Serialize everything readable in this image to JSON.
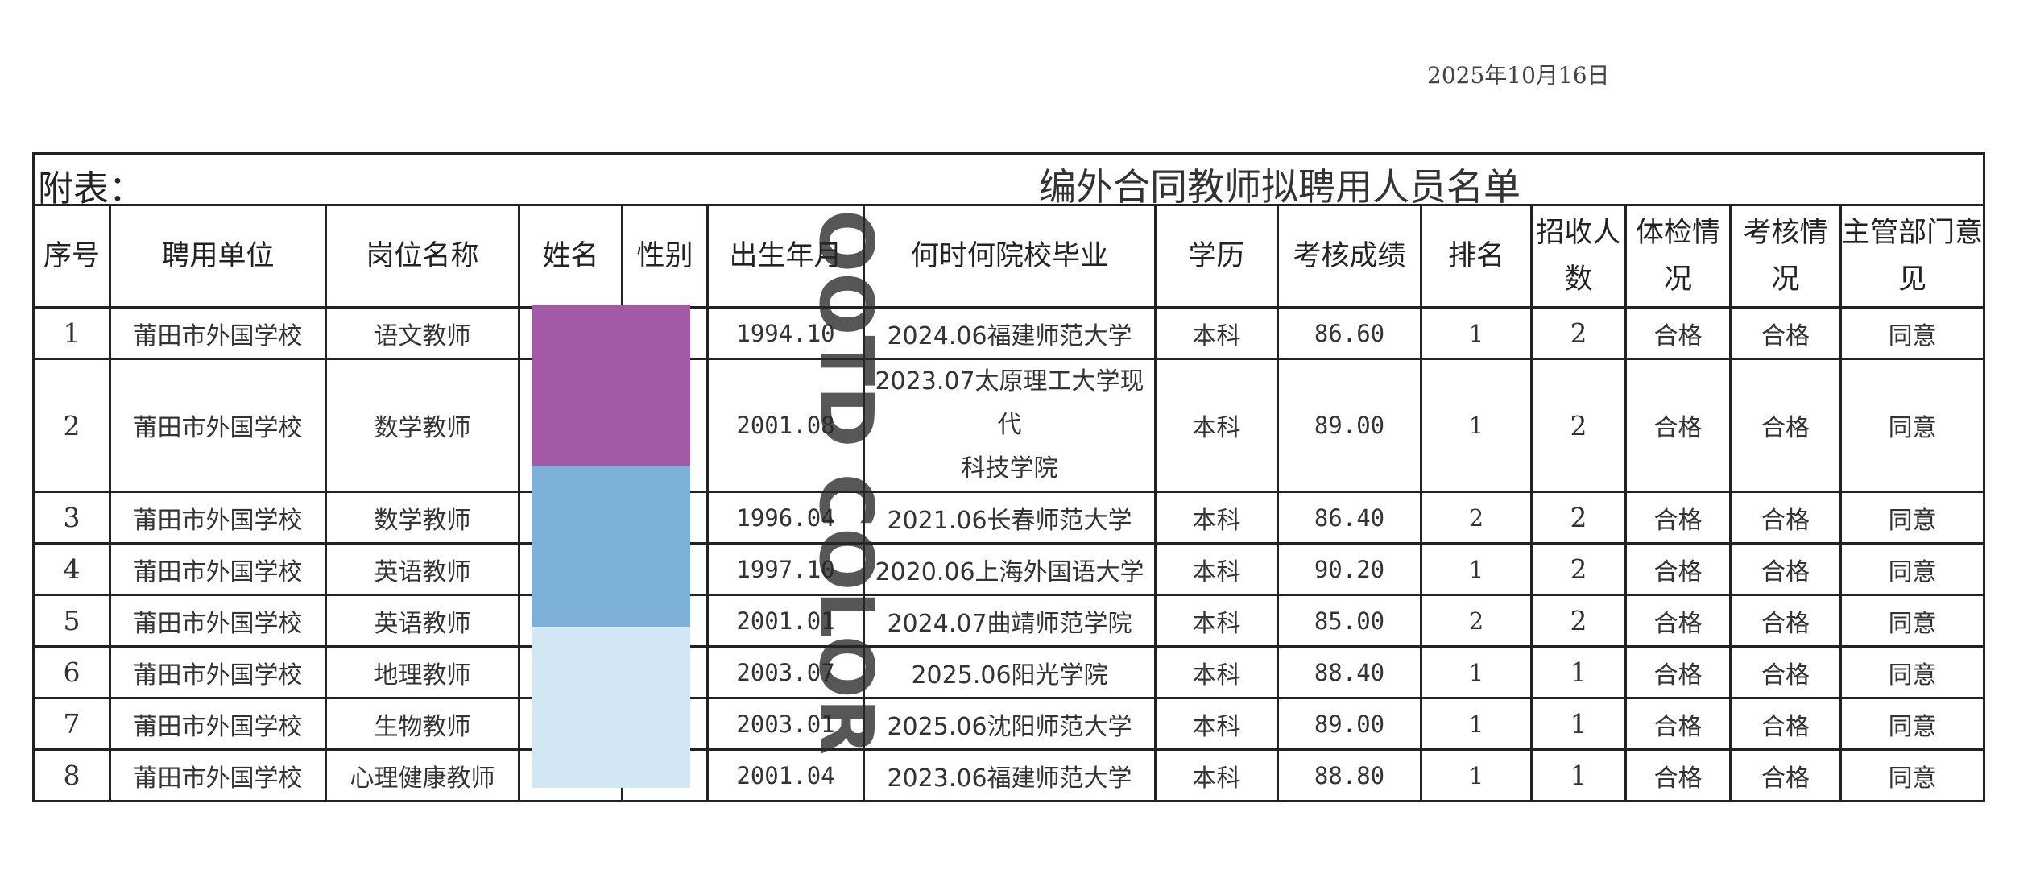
{
  "date": "2025年10月16日",
  "table": {
    "prefix": "附表：",
    "title": "编外合同教师拟聘用人员名单",
    "headers": [
      "序号",
      "聘用单位",
      "岗位名称",
      "姓名",
      "性别",
      "出生年月",
      "何时何院校毕业",
      "学历",
      "考核成绩",
      "排名",
      "招收人数",
      "体检情况",
      "考核情况",
      "主管部门意见"
    ],
    "rows": [
      {
        "no": "1",
        "unit": "莆田市外国学校",
        "position": "语文教师",
        "name": "",
        "gender": "",
        "birth": "1994.10",
        "school": "2024.06福建师范大学",
        "school2": "",
        "edu": "本科",
        "score": "86.60",
        "rank": "1",
        "quota": "2",
        "health": "合格",
        "assess": "合格",
        "opinion": "同意"
      },
      {
        "no": "2",
        "unit": "莆田市外国学校",
        "position": "数学教师",
        "name": "",
        "gender": "",
        "birth": "2001.08",
        "school": "2023.07太原理工大学现代",
        "school2": "科技学院",
        "edu": "本科",
        "score": "89.00",
        "rank": "1",
        "quota": "2",
        "health": "合格",
        "assess": "合格",
        "opinion": "同意"
      },
      {
        "no": "3",
        "unit": "莆田市外国学校",
        "position": "数学教师",
        "name": "",
        "gender": "",
        "birth": "1996.04",
        "school": "2021.06长春师范大学",
        "school2": "",
        "edu": "本科",
        "score": "86.40",
        "rank": "2",
        "quota": "2",
        "health": "合格",
        "assess": "合格",
        "opinion": "同意"
      },
      {
        "no": "4",
        "unit": "莆田市外国学校",
        "position": "英语教师",
        "name": "",
        "gender": "",
        "birth": "1997.10",
        "school": "2020.06上海外国语大学",
        "school2": "",
        "edu": "本科",
        "score": "90.20",
        "rank": "1",
        "quota": "2",
        "health": "合格",
        "assess": "合格",
        "opinion": "同意"
      },
      {
        "no": "5",
        "unit": "莆田市外国学校",
        "position": "英语教师",
        "name": "",
        "gender": "",
        "birth": "2001.01",
        "school": "2024.07曲靖师范学院",
        "school2": "",
        "edu": "本科",
        "score": "85.00",
        "rank": "2",
        "quota": "2",
        "health": "合格",
        "assess": "合格",
        "opinion": "同意"
      },
      {
        "no": "6",
        "unit": "莆田市外国学校",
        "position": "地理教师",
        "name": "",
        "gender": "",
        "birth": "2003.07",
        "school": "2025.06阳光学院",
        "school2": "",
        "edu": "本科",
        "score": "88.40",
        "rank": "1",
        "quota": "1",
        "health": "合格",
        "assess": "合格",
        "opinion": "同意"
      },
      {
        "no": "7",
        "unit": "莆田市外国学校",
        "position": "生物教师",
        "name": "",
        "gender": "",
        "birth": "2003.01",
        "school": "2025.06沈阳师范大学",
        "school2": "",
        "edu": "本科",
        "score": "89.00",
        "rank": "1",
        "quota": "1",
        "health": "合格",
        "assess": "合格",
        "opinion": "同意"
      },
      {
        "no": "8",
        "unit": "莆田市外国学校",
        "position": "心理健康教师",
        "name": "",
        "gender": "",
        "birth": "2001.04",
        "school": "2023.06福建师范大学",
        "school2": "",
        "edu": "本科",
        "score": "88.80",
        "rank": "1",
        "quota": "1",
        "health": "合格",
        "assess": "合格",
        "opinion": "同意"
      }
    ]
  },
  "redaction_colors": [
    "#a25aa6",
    "#7db1d8",
    "#d2e6f3"
  ],
  "watermark": "OOTD COLOR"
}
